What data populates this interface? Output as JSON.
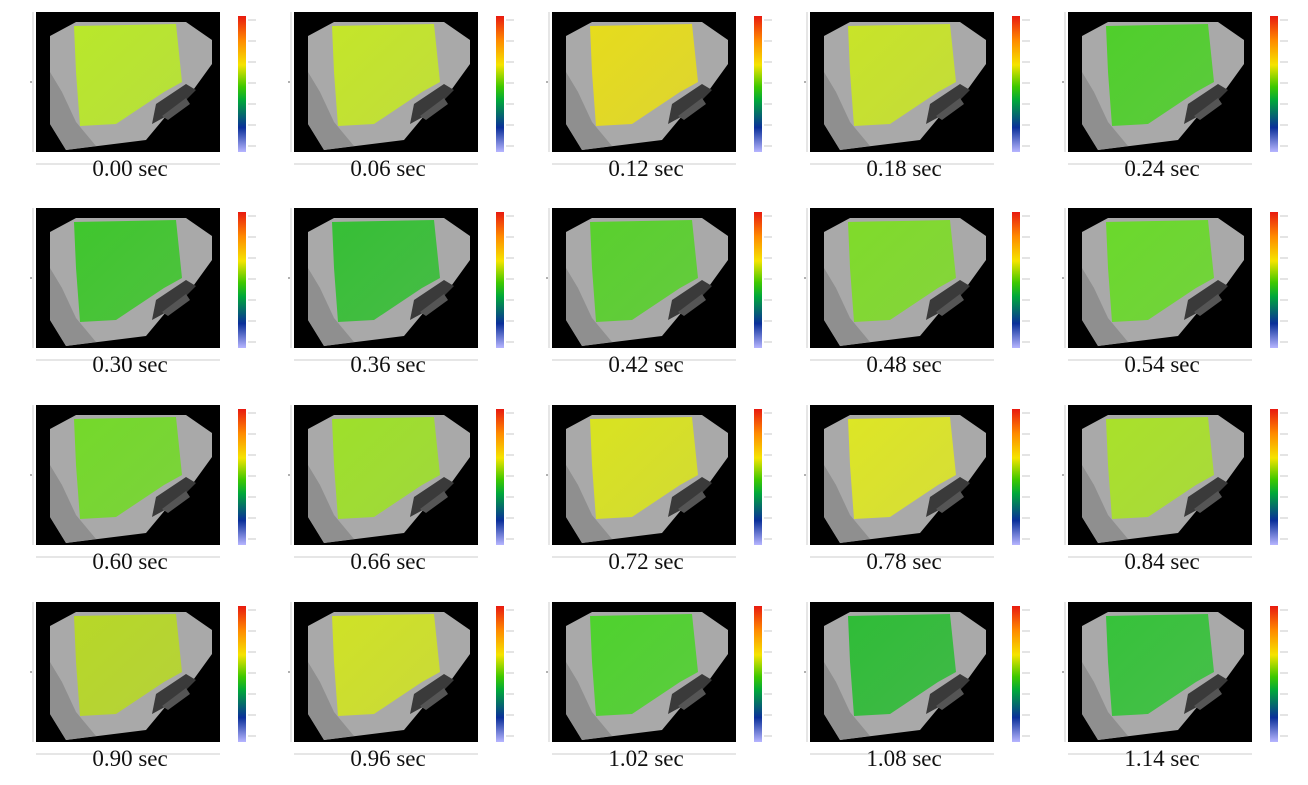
{
  "frames": [
    {
      "label": "0.00 sec",
      "tint": "#b9e82a"
    },
    {
      "label": "0.06 sec",
      "tint": "#c4e629"
    },
    {
      "label": "0.12 sec",
      "tint": "#e6dc1c"
    },
    {
      "label": "0.18 sec",
      "tint": "#c8e428"
    },
    {
      "label": "0.24 sec",
      "tint": "#4fcf2b"
    },
    {
      "label": "0.30 sec",
      "tint": "#3fc62d"
    },
    {
      "label": "0.36 sec",
      "tint": "#36bf35"
    },
    {
      "label": "0.42 sec",
      "tint": "#59d02d"
    },
    {
      "label": "0.48 sec",
      "tint": "#7fdb2a"
    },
    {
      "label": "0.54 sec",
      "tint": "#6ad92b"
    },
    {
      "label": "0.60 sec",
      "tint": "#74d92a"
    },
    {
      "label": "0.66 sec",
      "tint": "#9ee02a"
    },
    {
      "label": "0.72 sec",
      "tint": "#d9e320"
    },
    {
      "label": "0.78 sec",
      "tint": "#dde625"
    },
    {
      "label": "0.84 sec",
      "tint": "#a9e12a"
    },
    {
      "label": "0.90 sec",
      "tint": "#b7d827"
    },
    {
      "label": "0.96 sec",
      "tint": "#cfe226"
    },
    {
      "label": "1.02 sec",
      "tint": "#4ed22d"
    },
    {
      "label": "1.08 sec",
      "tint": "#2fbc37"
    },
    {
      "label": "1.14 sec",
      "tint": "#36c23a"
    }
  ],
  "colorbar": {
    "stops": [
      "#e81a10",
      "#ff8a00",
      "#f5e400",
      "#3ec800",
      "#00a83a",
      "#0a2f9a",
      "#b7b5ff"
    ]
  }
}
